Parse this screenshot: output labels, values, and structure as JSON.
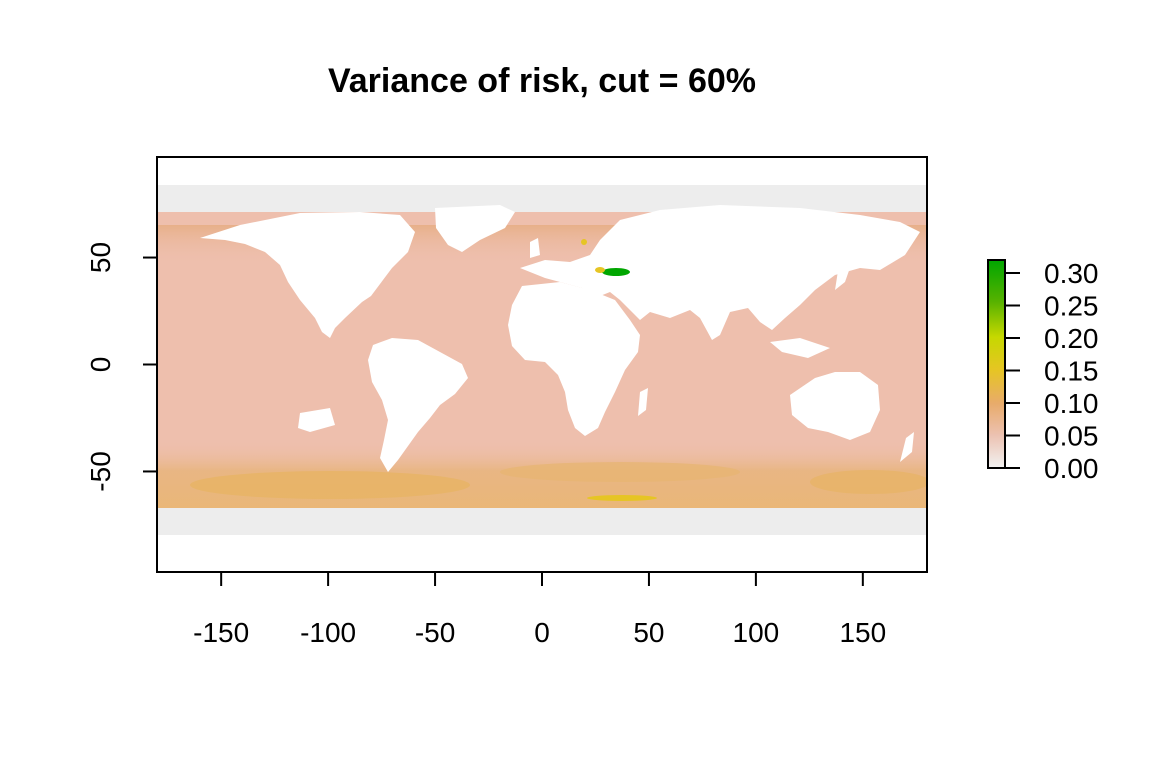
{
  "chart_data": {
    "type": "heatmap",
    "title": "Variance of risk, cut = 60%",
    "xlabel": "",
    "ylabel": "",
    "xlim": [
      -180,
      180
    ],
    "ylim": [
      -97,
      97
    ],
    "x_ticks": [
      -150,
      -100,
      -50,
      0,
      50,
      100,
      150
    ],
    "y_ticks": [
      50,
      0,
      -50
    ],
    "x_tick_labels": [
      "-150",
      "-100",
      "-50",
      "0",
      "50",
      "100",
      "150"
    ],
    "y_tick_labels": [
      "50",
      "0",
      "-50"
    ],
    "legend": {
      "placement": "right",
      "range": [
        0,
        0.32
      ],
      "ticks": [
        0.0,
        0.05,
        0.1,
        0.15,
        0.2,
        0.25,
        0.3
      ],
      "tick_labels": [
        "0.00",
        "0.05",
        "0.10",
        "0.15",
        "0.20",
        "0.25",
        "0.30"
      ],
      "color_stops": [
        {
          "value": 0.0,
          "color": "#f2f2f2"
        },
        {
          "value": 0.05,
          "color": "#ecc1b0"
        },
        {
          "value": 0.1,
          "color": "#e8ab6b"
        },
        {
          "value": 0.15,
          "color": "#e6c524"
        },
        {
          "value": 0.2,
          "color": "#c6d800"
        },
        {
          "value": 0.25,
          "color": "#57b200"
        },
        {
          "value": 0.32,
          "color": "#00a600"
        }
      ]
    },
    "ocean_base_color": "#eebfad",
    "land_color": "#ffffff",
    "ice_color": "#ededed"
  }
}
